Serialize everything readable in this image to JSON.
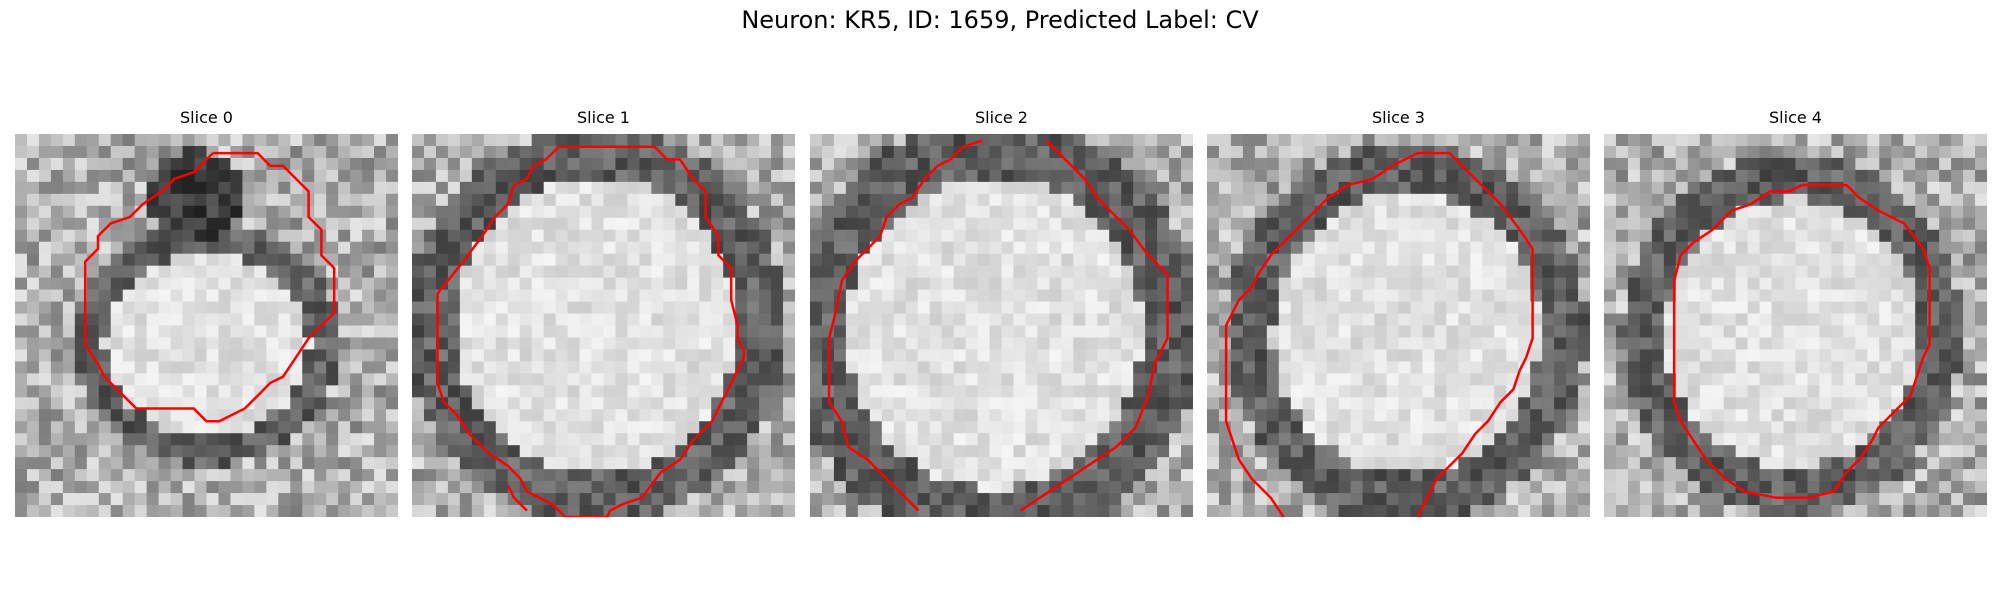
{
  "figure": {
    "title": "Neuron: KR5, ID: 1659, Predicted Label: CV"
  },
  "panels": [
    {
      "title": "Slice 0"
    },
    {
      "title": "Slice 1"
    },
    {
      "title": "Slice 2"
    },
    {
      "title": "Slice 3"
    },
    {
      "title": "Slice 4"
    }
  ],
  "colors": {
    "contour": "#ff0000",
    "background": "#ffffff"
  }
}
